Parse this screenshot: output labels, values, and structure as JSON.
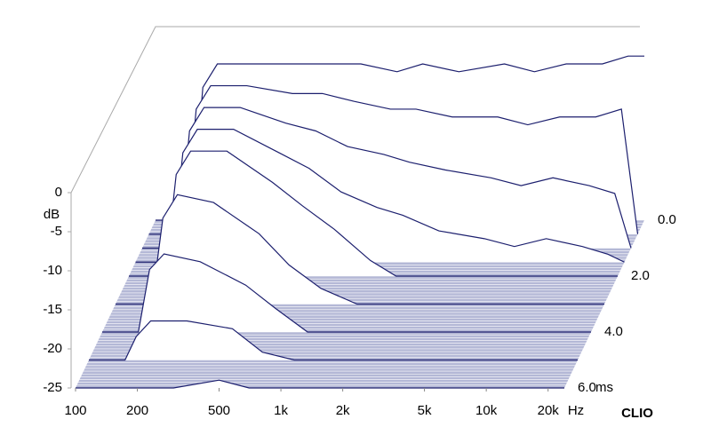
{
  "chart_data": {
    "type": "waterfall",
    "y_unit": "dB",
    "x_unit": "Hz",
    "t_unit": "ms",
    "brand": "CLIO",
    "x": [
      100,
      150,
      170,
      200,
      300,
      500,
      700,
      1000,
      1500,
      2000,
      3000,
      5000,
      7000,
      10000,
      15000,
      20000,
      24000
    ],
    "xlim": [
      100,
      24000
    ],
    "xticks": [
      100,
      200,
      500,
      {
        "value": 1000,
        "label": "1k"
      },
      {
        "value": 2000,
        "label": "2k"
      },
      {
        "value": 5000,
        "label": "5k"
      },
      {
        "value": 10000,
        "label": "10k"
      },
      {
        "value": 20000,
        "label": "20k"
      }
    ],
    "ylim": [
      -25,
      0
    ],
    "yticks": [
      0,
      -5,
      -10,
      -15,
      -20,
      -25
    ],
    "tlim": [
      0,
      6
    ],
    "tticks": [
      {
        "value": 0,
        "label": "0.0"
      },
      {
        "value": 2,
        "label": "2.0"
      },
      {
        "value": 4,
        "label": "4.0"
      },
      {
        "value": 6,
        "label": "6.0"
      }
    ],
    "color": "#1c1f6e",
    "slices": [
      {
        "t": 0,
        "values": [
          -25,
          -25,
          -8,
          -5,
          -5,
          -5,
          -5,
          -5,
          -6,
          -5,
          -6,
          -5,
          -6,
          -5,
          -5,
          -4,
          -4
        ]
      },
      {
        "t": 0.5,
        "values": [
          -25,
          -25,
          -9,
          -6,
          -6,
          -7,
          -7,
          -8,
          -9,
          -9,
          -10,
          -10,
          -11,
          -10,
          -10,
          -9,
          -25
        ]
      },
      {
        "t": 1,
        "values": [
          -25,
          -25,
          -10,
          -7,
          -7,
          -9,
          -10,
          -12,
          -13,
          -14,
          -15,
          -16,
          -17,
          -16,
          -17,
          -18,
          -25
        ]
      },
      {
        "t": 1.5,
        "values": [
          -25,
          -25,
          -11,
          -8,
          -8,
          -11,
          -13,
          -16,
          -18,
          -19,
          -21,
          -22,
          -23,
          -22,
          -23,
          -24,
          -25
        ]
      },
      {
        "t": 2,
        "values": [
          -25,
          -25,
          -12,
          -9,
          -9,
          -13,
          -16,
          -19,
          -23,
          -25,
          -25,
          -25,
          -25,
          -25,
          -25,
          -25,
          -25
        ]
      },
      {
        "t": 3,
        "values": [
          -25,
          -25,
          -14,
          -11,
          -12,
          -16,
          -20,
          -23,
          -25,
          -25,
          -25,
          -25,
          -25,
          -25,
          -25,
          -25,
          -25
        ]
      },
      {
        "t": 4,
        "values": [
          -25,
          -25,
          -17,
          -15,
          -16,
          -19,
          -22,
          -25,
          -25,
          -25,
          -25,
          -25,
          -25,
          -25,
          -25,
          -25,
          -25
        ]
      },
      {
        "t": 5,
        "values": [
          -25,
          -25,
          -22,
          -20,
          -20,
          -21,
          -24,
          -25,
          -25,
          -25,
          -25,
          -25,
          -25,
          -25,
          -25,
          -25,
          -25
        ]
      },
      {
        "t": 6,
        "values": [
          -25,
          -25,
          -25,
          -25,
          -25,
          -24,
          -25,
          -25,
          -25,
          -25,
          -25,
          -25,
          -25,
          -25,
          -25,
          -25,
          -25
        ]
      }
    ]
  }
}
